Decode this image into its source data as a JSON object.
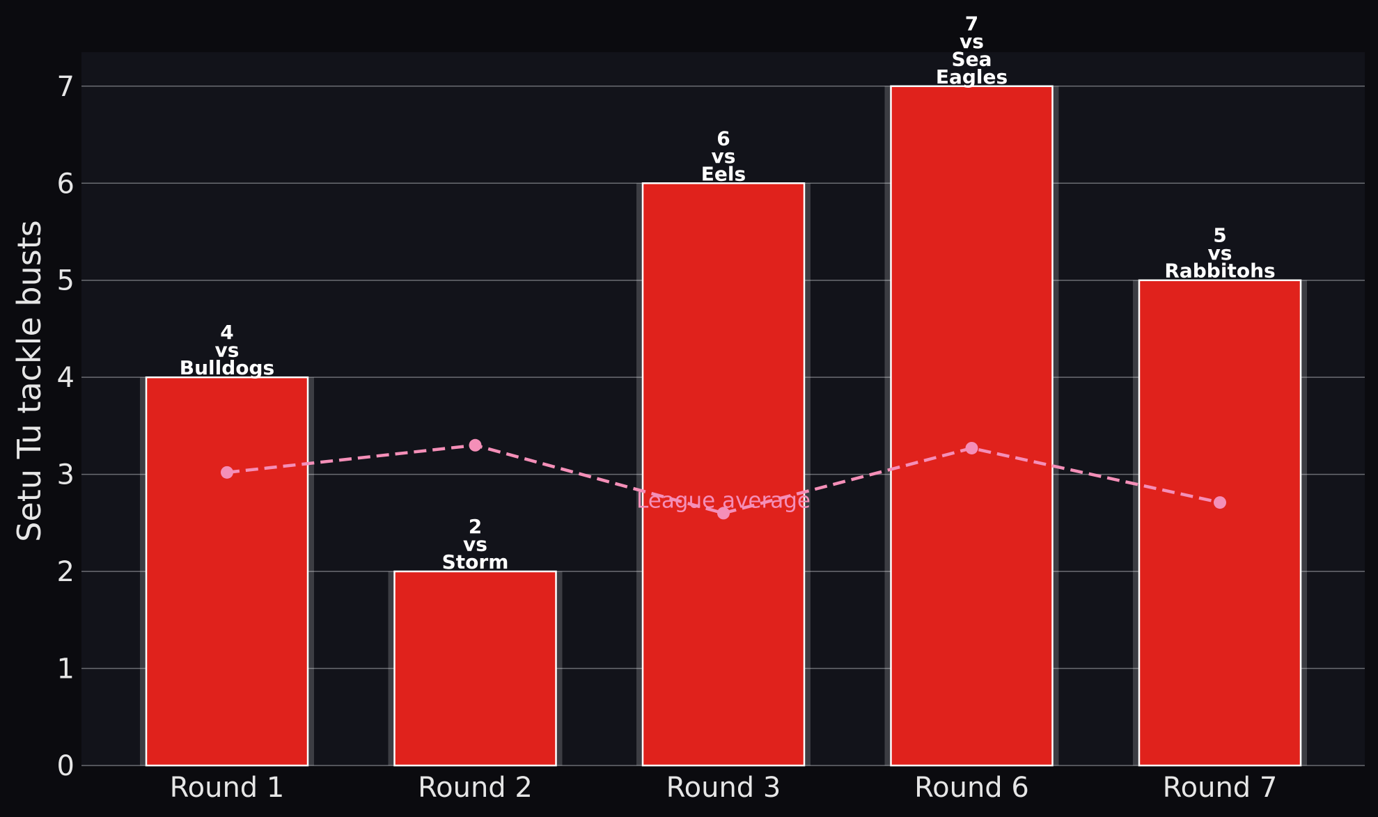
{
  "chart_data": {
    "type": "bar",
    "categories": [
      "Round 1",
      "Round 2",
      "Round 3",
      "Round 6",
      "Round 7"
    ],
    "ylabel": "Setu Tu tackle busts",
    "ylim": [
      0,
      7.35
    ],
    "yticks": [
      0,
      1,
      2,
      3,
      4,
      5,
      6,
      7
    ],
    "grid": true,
    "series": [
      {
        "values": [
          4,
          2,
          6,
          7,
          5
        ],
        "color": "#e0221c",
        "bar_labels": [
          [
            "4",
            "vs",
            "Bulldogs"
          ],
          [
            "2",
            "vs",
            "Storm"
          ],
          [
            "6",
            "vs",
            "Eels"
          ],
          [
            "7",
            "vs",
            "Sea",
            "Eagles"
          ],
          [
            "5",
            "vs",
            "Rabbitohs"
          ]
        ]
      },
      {
        "name": "League average",
        "type": "line",
        "style": "dashed",
        "color": "#f48fb8",
        "values": [
          3.02,
          3.3,
          2.6,
          3.27,
          2.71
        ]
      }
    ],
    "colors": {
      "figure_background": "#0b0b0f",
      "plot_background": "#12131a",
      "grid": "#6b6d73",
      "text": "#e6e6e6"
    }
  }
}
